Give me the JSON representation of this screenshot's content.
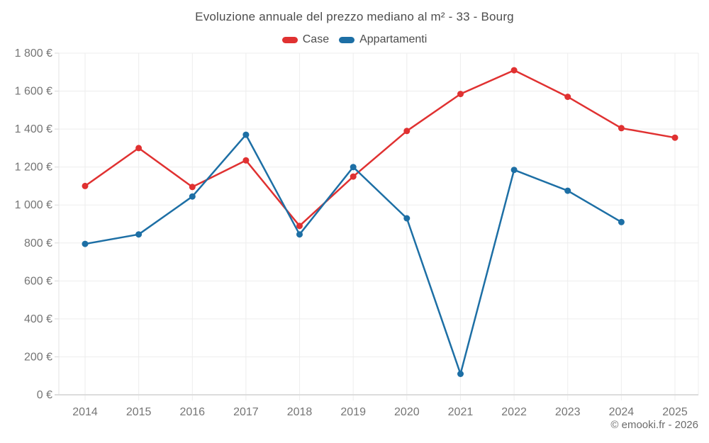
{
  "footer": {
    "credit": "© emooki.fr - 2026"
  },
  "chart_data": {
    "type": "line",
    "title": "Evoluzione annuale del prezzo mediano al m² - 33 - Bourg",
    "categories": [
      "2014",
      "2015",
      "2016",
      "2017",
      "2018",
      "2019",
      "2020",
      "2021",
      "2022",
      "2023",
      "2024",
      "2025"
    ],
    "series": [
      {
        "name": "Case",
        "color": "#e03131",
        "values": [
          1100,
          1300,
          1095,
          1235,
          890,
          1150,
          1390,
          1585,
          1710,
          1570,
          1405,
          1355
        ]
      },
      {
        "name": "Appartamenti",
        "color": "#1d6fa5",
        "values": [
          795,
          845,
          1045,
          1370,
          845,
          1200,
          930,
          110,
          1185,
          1075,
          910,
          null
        ]
      }
    ],
    "xlabel": "",
    "ylabel": "",
    "ylim": [
      0,
      1800
    ],
    "y_tick_values": [
      0,
      200,
      400,
      600,
      800,
      1000,
      1200,
      1400,
      1600,
      1800
    ],
    "y_tick_labels": [
      "0 €",
      "200 €",
      "400 €",
      "600 €",
      "800 €",
      "1 000 €",
      "1 200 €",
      "1 400 €",
      "1 600 €",
      "1 800 €"
    ],
    "grid": true,
    "legend_position": "top",
    "marker": "circle"
  }
}
